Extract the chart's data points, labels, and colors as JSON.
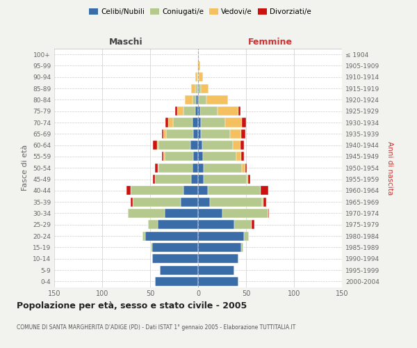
{
  "age_groups": [
    "0-4",
    "5-9",
    "10-14",
    "15-19",
    "20-24",
    "25-29",
    "30-34",
    "35-39",
    "40-44",
    "45-49",
    "50-54",
    "55-59",
    "60-64",
    "65-69",
    "70-74",
    "75-79",
    "80-84",
    "85-89",
    "90-94",
    "95-99",
    "100+"
  ],
  "birth_years": [
    "2000-2004",
    "1995-1999",
    "1990-1994",
    "1985-1989",
    "1980-1984",
    "1975-1979",
    "1970-1974",
    "1965-1969",
    "1960-1964",
    "1955-1959",
    "1950-1954",
    "1945-1949",
    "1940-1944",
    "1935-1939",
    "1930-1934",
    "1925-1929",
    "1920-1924",
    "1915-1919",
    "1910-1914",
    "1905-1909",
    "≤ 1904"
  ],
  "colors": {
    "celibi": "#3a6ca8",
    "coniugati": "#b5c98e",
    "vedovi": "#f5c060",
    "divorziati": "#cc1111"
  },
  "maschi": {
    "celibi": [
      45,
      40,
      48,
      48,
      55,
      42,
      35,
      18,
      15,
      7,
      6,
      5,
      8,
      5,
      6,
      3,
      2,
      1,
      0,
      0,
      0
    ],
    "coniugati": [
      0,
      0,
      0,
      1,
      3,
      10,
      38,
      50,
      55,
      38,
      35,
      30,
      33,
      28,
      20,
      12,
      4,
      2,
      1,
      0,
      0
    ],
    "vedovi": [
      0,
      0,
      0,
      0,
      0,
      0,
      0,
      0,
      0,
      0,
      1,
      1,
      2,
      3,
      5,
      7,
      8,
      4,
      2,
      1,
      0
    ],
    "divorziati": [
      0,
      0,
      0,
      0,
      0,
      0,
      0,
      2,
      5,
      2,
      3,
      2,
      4,
      2,
      3,
      2,
      0,
      0,
      0,
      0,
      0
    ]
  },
  "femmine": {
    "celibi": [
      42,
      38,
      42,
      45,
      48,
      38,
      25,
      12,
      10,
      6,
      6,
      5,
      4,
      3,
      3,
      2,
      1,
      0,
      0,
      0,
      0
    ],
    "coniugati": [
      0,
      0,
      0,
      2,
      5,
      18,
      48,
      55,
      55,
      45,
      40,
      35,
      32,
      30,
      25,
      18,
      8,
      3,
      1,
      0,
      0
    ],
    "vedovi": [
      0,
      0,
      0,
      0,
      0,
      0,
      0,
      1,
      0,
      1,
      3,
      5,
      8,
      12,
      18,
      22,
      22,
      8,
      4,
      2,
      1
    ],
    "divorziati": [
      0,
      0,
      0,
      0,
      0,
      3,
      1,
      3,
      8,
      2,
      2,
      3,
      4,
      4,
      4,
      2,
      0,
      0,
      0,
      0,
      0
    ]
  },
  "xlim": 150,
  "title": "Popolazione per età, sesso e stato civile - 2005",
  "subtitle": "COMUNE DI SANTA MARGHERITA D'ADIGE (PD) - Dati ISTAT 1° gennaio 2005 - Elaborazione TUTTITALIA.IT",
  "maschi_label": "Maschi",
  "femmine_label": "Femmine",
  "ylabel_left": "Fasce di età",
  "ylabel_right": "Anni di nascita",
  "legend_labels": [
    "Celibi/Nubili",
    "Coniugati/e",
    "Vedovi/e",
    "Divorziati/e"
  ],
  "bg_color": "#f2f2ee",
  "plot_bg_color": "#ffffff",
  "maschi_color": "#444444",
  "femmine_color": "#cc3333",
  "axis_label_color": "#cc3333",
  "tick_color": "#666666",
  "grid_color": "#cccccc"
}
